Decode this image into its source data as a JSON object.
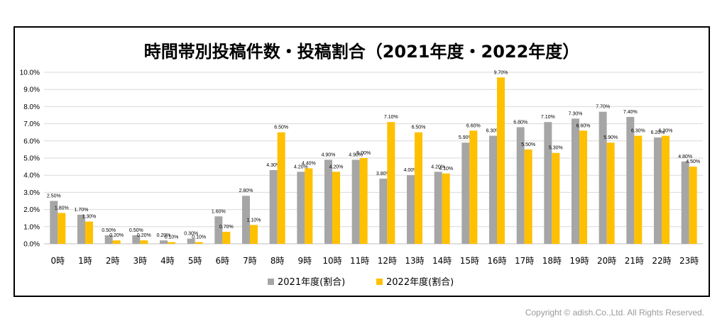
{
  "chart_data": {
    "type": "bar",
    "title": "時間帯別投稿件数・投稿割合（2021年度・2022年度）",
    "categories": [
      "0時",
      "1時",
      "2時",
      "3時",
      "4時",
      "5時",
      "6時",
      "7時",
      "8時",
      "9時",
      "10時",
      "11時",
      "12時",
      "13時",
      "14時",
      "15時",
      "16時",
      "17時",
      "18時",
      "19時",
      "20時",
      "21時",
      "22時",
      "23時"
    ],
    "series": [
      {
        "name": "2021年度(割合)",
        "color": "#a6a6a6",
        "values": [
          2.5,
          1.7,
          0.5,
          0.5,
          0.2,
          0.3,
          1.6,
          2.8,
          4.3,
          4.2,
          4.9,
          4.9,
          3.8,
          4.0,
          4.2,
          5.9,
          6.3,
          6.8,
          7.1,
          7.3,
          7.7,
          7.4,
          6.2,
          4.8
        ]
      },
      {
        "name": "2022年度(割合)",
        "color": "#ffc000",
        "values": [
          1.8,
          1.3,
          0.2,
          0.2,
          0.1,
          0.1,
          0.7,
          1.1,
          6.5,
          4.4,
          4.2,
          5.0,
          7.1,
          6.5,
          4.1,
          6.6,
          9.7,
          5.5,
          5.3,
          6.6,
          5.9,
          6.3,
          6.3,
          4.5
        ]
      }
    ],
    "yticks": [
      "0.0%",
      "1.0%",
      "2.0%",
      "3.0%",
      "4.0%",
      "5.0%",
      "6.0%",
      "7.0%",
      "8.0%",
      "9.0%",
      "10.0%"
    ],
    "ylim": [
      0,
      10
    ],
    "grid": true,
    "legend": "bottom",
    "xlabel": "",
    "ylabel": ""
  },
  "copyright": "Copyright © adish.Co.,Ltd.  All Rights Reserved."
}
